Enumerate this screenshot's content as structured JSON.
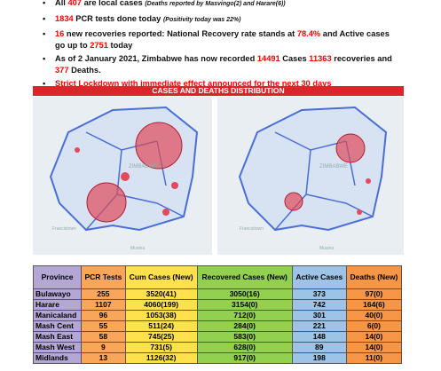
{
  "bullets": [
    [
      {
        "text": "All "
      },
      {
        "text": "407",
        "color": "red"
      },
      {
        "text": " are local cases "
      },
      {
        "text": "(Deaths reported by Masvingo(2) and Harare(6))",
        "italic": true
      }
    ],
    [
      {
        "text": "1834",
        "color": "red"
      },
      {
        "text": " PCR tests done today "
      },
      {
        "text": "(Positivity today was 22%)",
        "italic": true
      }
    ],
    [
      {
        "text": "16",
        "color": "red"
      },
      {
        "text": " new recoveries reported: National Recovery rate stands at "
      },
      {
        "text": "78.4%",
        "color": "red"
      },
      {
        "text": " and Active cases go up to "
      },
      {
        "text": "2751",
        "color": "red"
      },
      {
        "text": " today"
      }
    ],
    [
      {
        "text": "As of 2 January 2021, Zimbabwe has now recorded "
      },
      {
        "text": "14491",
        "color": "red"
      },
      {
        "text": " Cases "
      },
      {
        "text": "11363",
        "color": "red"
      },
      {
        "text": " recoveries and "
      },
      {
        "text": "377",
        "color": "red"
      },
      {
        "text": " Deaths."
      }
    ],
    [
      {
        "text": "Strict Lockdown with immediate effect announced for the next 30 days",
        "color": "red"
      }
    ]
  ],
  "banner": "CASES AND DEATHS DISTRIBUTION",
  "maps": {
    "country": "ZIMBABWE",
    "city": "Francistown",
    "border": "Musina"
  },
  "table": {
    "header": [
      "Province",
      "PCR Tests",
      "Cum Cases (New)",
      "Recovered Cases (New)",
      "Active Cases",
      "Deaths (New)"
    ],
    "rows": [
      [
        "Bulawayo",
        "255",
        "3520(41)",
        "3050(16)",
        "373",
        "97(0)"
      ],
      [
        "Harare",
        "1107",
        "4060(199)",
        "3154(0)",
        "742",
        "164(6)"
      ],
      [
        "Manicaland",
        "96",
        "1053(38)",
        "712(0)",
        "301",
        "40(0)"
      ],
      [
        "Mash Cent",
        "55",
        "511(24)",
        "284(0)",
        "221",
        "6(0)"
      ],
      [
        "Mash East",
        "58",
        "745(25)",
        "583(0)",
        "148",
        "14(0)"
      ],
      [
        "Mash West",
        "9",
        "731(5)",
        "628(0)",
        "89",
        "14(0)"
      ],
      [
        "Midlands",
        "13",
        "1126(32)",
        "917(0)",
        "198",
        "11(0)"
      ]
    ],
    "colors": [
      "#b4a7d6",
      "#f9a65a",
      "#ffe14d",
      "#92d050",
      "#9dc3e6",
      "#f79646"
    ]
  }
}
